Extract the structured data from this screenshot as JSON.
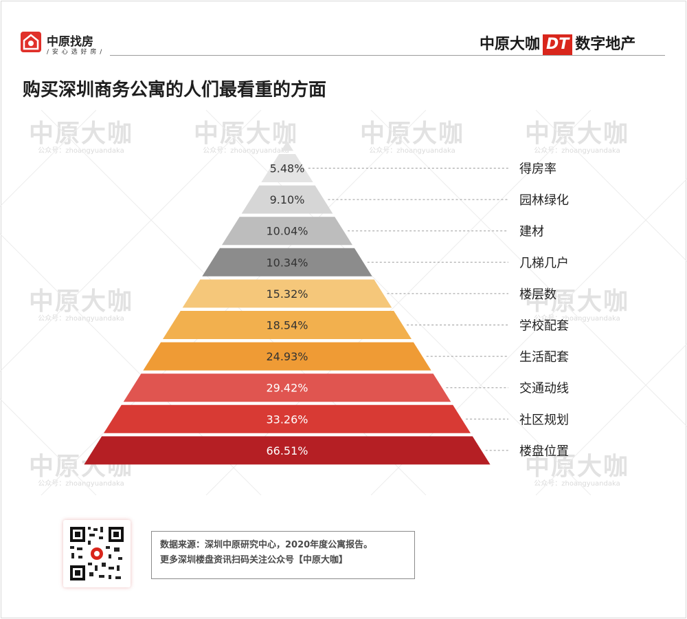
{
  "header": {
    "left_brand": "中原找房",
    "left_slogan": "/ 安 心 选 好 房 /",
    "right_brand_a": "中原大咖",
    "right_brand_b": "DT",
    "right_brand_c": "数字地产"
  },
  "title": "购买深圳商务公寓的人们最看重的方面",
  "watermark": {
    "main": "中原大咖",
    "sub": "公众号：zhoangyuandaka"
  },
  "chart_data": {
    "type": "bar",
    "categories": [
      "得房率",
      "园林绿化",
      "建材",
      "几梯几户",
      "楼层数",
      "学校配套",
      "生活配套",
      "交通动线",
      "社区规划",
      "楼盘位置"
    ],
    "values": [
      5.48,
      9.1,
      10.04,
      10.34,
      15.32,
      18.54,
      24.93,
      29.42,
      33.26,
      66.51
    ],
    "data_labels": [
      "5.48%",
      "9.10%",
      "10.04%",
      "10.34%",
      "15.32%",
      "18.54%",
      "24.93%",
      "29.42%",
      "33.26%",
      "66.51%"
    ],
    "colors": [
      "#e4e4e4",
      "#d6d6d6",
      "#bdbdbd",
      "#8c8c8c",
      "#f5c77a",
      "#f2b04e",
      "#ef9b35",
      "#e05550",
      "#d83a34",
      "#b51f24"
    ],
    "label_colors": [
      "#333333",
      "#333333",
      "#333333",
      "#333333",
      "#333333",
      "#333333",
      "#333333",
      "#ffffff",
      "#ffffff",
      "#ffffff"
    ],
    "style": "pyramid"
  },
  "footer": {
    "source_line1": "数据来源：深圳中原研究中心，2020年度公寓报告。",
    "source_line2": "更多深圳楼盘资讯扫码关注公众号【中原大咖】"
  }
}
